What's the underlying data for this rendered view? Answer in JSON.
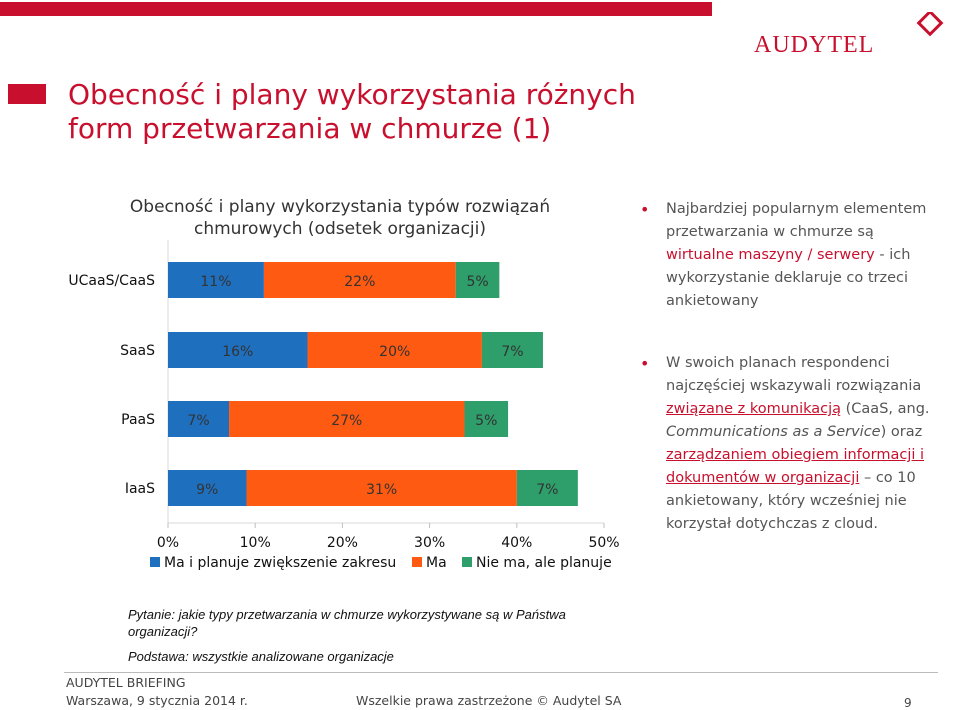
{
  "slide": {
    "title_line1": "Obecność i plany wykorzystania różnych",
    "title_line2": "form przetwarzania w chmurze (1)",
    "logo_text": "AUDYTEL",
    "bullet1": {
      "t1": "Najbardziej popularnym elementem przetwarzania w chmurze są ",
      "h1": "wirtualne maszyny / serwery",
      "t2": " - ich wykorzystanie deklaruje co trzeci ankietowany"
    },
    "bullet2": {
      "t1": "W swoich planach respondenci najczęściej wskazywali rozwiązania ",
      "h1": "związane z komunikacją",
      "t2": " (CaaS, ang. ",
      "i1": "Communications as a Service",
      "t3": ") oraz ",
      "h2": "zarządzaniem obiegiem informacji i dokumentów w organizacji",
      "t4": " – co 10 ankietowany, który wcześniej nie korzystał dotychczas z cloud."
    },
    "source_question": "Pytanie: jakie typy przetwarzania w chmurze wykorzystywane są w Państwa organizacji?",
    "source_base": "Podstawa: wszystkie analizowane organizacje",
    "footer_org": "AUDYTEL BRIEFING",
    "footer_date": "Warszawa, 9 stycznia 2014 r.",
    "footer_rights": "Wszelkie prawa zastrzeżone © Audytel SA",
    "page_number": "9"
  },
  "colors": {
    "accent_red": "#c8102e",
    "series_blue": "#1f6fbf",
    "series_orange": "#ff5a12",
    "series_green": "#2e9e6b"
  },
  "chart_data": {
    "type": "bar",
    "orientation": "horizontal",
    "stacked": true,
    "title": "Obecność i plany wykorzystania typów rozwiązań chmurowych (odsetek organizacji)",
    "categories": [
      "UCaaS/CaaS",
      "SaaS",
      "PaaS",
      "IaaS"
    ],
    "series": [
      {
        "name": "Ma i planuje zwiększenie zakresu",
        "color": "#1f6fbf",
        "values": [
          11,
          16,
          7,
          9
        ]
      },
      {
        "name": "Ma",
        "color": "#ff5a12",
        "values": [
          22,
          20,
          27,
          31
        ]
      },
      {
        "name": "Nie ma, ale planuje",
        "color": "#2e9e6b",
        "values": [
          5,
          7,
          5,
          7
        ]
      }
    ],
    "data_labels": [
      [
        "11%",
        "22%",
        "5%"
      ],
      [
        "16%",
        "20%",
        "7%"
      ],
      [
        "7%",
        "27%",
        "5%"
      ],
      [
        "9%",
        "31%",
        "7%"
      ]
    ],
    "xlim": [
      0,
      50
    ],
    "xticks": [
      "0%",
      "10%",
      "20%",
      "30%",
      "40%",
      "50%"
    ],
    "legend_position": "bottom",
    "grid": false
  }
}
